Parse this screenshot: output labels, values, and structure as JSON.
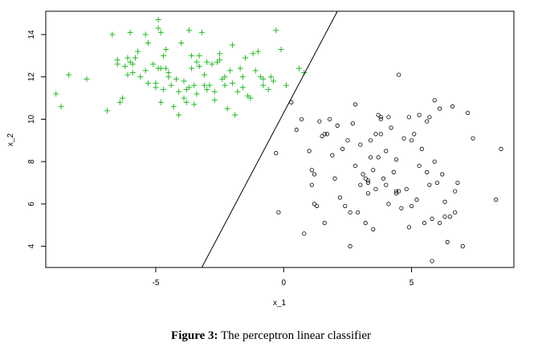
{
  "caption": {
    "label": "Figure 3:",
    "text": " The perceptron linear classifier"
  },
  "chart_data": {
    "type": "scatter",
    "title": "",
    "xlabel": "x_1",
    "ylabel": "x_2",
    "xlim": [
      -9.3,
      9.0
    ],
    "ylim": [
      3.0,
      15.1
    ],
    "xticks": [
      -5,
      0,
      5
    ],
    "yticks": [
      4,
      6,
      8,
      10,
      12,
      14
    ],
    "grid": false,
    "colors": {
      "class_plus": "#22bb22",
      "class_circle": "#000000",
      "line": "#000000"
    },
    "decision_line": {
      "x": [
        -3.2,
        2.1
      ],
      "y": [
        3.0,
        15.1
      ]
    },
    "series": [
      {
        "marker": "plus",
        "points": [
          [
            -8.9,
            11.2
          ],
          [
            -8.7,
            10.6
          ],
          [
            -8.4,
            12.1
          ],
          [
            -7.7,
            11.9
          ],
          [
            -6.9,
            10.4
          ],
          [
            -6.7,
            14.0
          ],
          [
            -6.5,
            12.6
          ],
          [
            -6.5,
            12.8
          ],
          [
            -6.4,
            10.8
          ],
          [
            -6.3,
            11.0
          ],
          [
            -6.2,
            12.5
          ],
          [
            -6.1,
            12.1
          ],
          [
            -6.1,
            12.9
          ],
          [
            -6.0,
            12.7
          ],
          [
            -6.0,
            14.1
          ],
          [
            -5.9,
            12.2
          ],
          [
            -5.9,
            12.6
          ],
          [
            -5.8,
            12.9
          ],
          [
            -5.7,
            13.2
          ],
          [
            -5.6,
            12.0
          ],
          [
            -5.4,
            12.3
          ],
          [
            -5.4,
            14.0
          ],
          [
            -5.3,
            11.7
          ],
          [
            -5.3,
            13.6
          ],
          [
            -5.1,
            12.6
          ],
          [
            -5.0,
            11.5
          ],
          [
            -5.0,
            11.7
          ],
          [
            -4.9,
            14.3
          ],
          [
            -4.9,
            14.7
          ],
          [
            -4.9,
            12.4
          ],
          [
            -4.8,
            12.4
          ],
          [
            -4.8,
            10.8
          ],
          [
            -4.8,
            14.1
          ],
          [
            -4.7,
            11.4
          ],
          [
            -4.7,
            13.0
          ],
          [
            -4.6,
            12.4
          ],
          [
            -4.6,
            13.3
          ],
          [
            -4.5,
            12.0
          ],
          [
            -4.5,
            12.2
          ],
          [
            -4.4,
            11.6
          ],
          [
            -4.3,
            10.6
          ],
          [
            -4.2,
            11.9
          ],
          [
            -4.1,
            11.3
          ],
          [
            -4.0,
            13.6
          ],
          [
            -3.9,
            11.0
          ],
          [
            -3.9,
            11.8
          ],
          [
            -3.8,
            10.8
          ],
          [
            -3.8,
            11.4
          ],
          [
            -3.7,
            14.2
          ],
          [
            -3.7,
            11.5
          ],
          [
            -3.6,
            12.4
          ],
          [
            -3.6,
            13.0
          ],
          [
            -3.5,
            10.7
          ],
          [
            -3.5,
            11.6
          ],
          [
            -3.4,
            11.2
          ],
          [
            -3.4,
            12.7
          ],
          [
            -3.3,
            13.0
          ],
          [
            -3.3,
            12.5
          ],
          [
            -3.2,
            14.1
          ],
          [
            -3.1,
            11.6
          ],
          [
            -3.1,
            12.1
          ],
          [
            -3.0,
            12.7
          ],
          [
            -3.0,
            11.4
          ],
          [
            -2.9,
            11.6
          ],
          [
            -2.8,
            12.6
          ],
          [
            -2.7,
            11.3
          ],
          [
            -2.7,
            10.9
          ],
          [
            -2.6,
            12.7
          ],
          [
            -2.5,
            12.8
          ],
          [
            -2.5,
            13.1
          ],
          [
            -2.4,
            11.9
          ],
          [
            -2.3,
            12.0
          ],
          [
            -2.3,
            11.6
          ],
          [
            -2.2,
            10.5
          ],
          [
            -2.1,
            12.3
          ],
          [
            -2.0,
            13.5
          ],
          [
            -2.0,
            11.7
          ],
          [
            -1.9,
            10.2
          ],
          [
            -1.8,
            11.3
          ],
          [
            -1.7,
            12.4
          ],
          [
            -1.6,
            12.0
          ],
          [
            -1.6,
            11.5
          ],
          [
            -1.5,
            12.9
          ],
          [
            -1.4,
            11.1
          ],
          [
            -1.3,
            11.0
          ],
          [
            -1.2,
            13.1
          ],
          [
            -1.1,
            12.3
          ],
          [
            -1.0,
            13.2
          ],
          [
            -0.9,
            12.0
          ],
          [
            -0.8,
            11.6
          ],
          [
            -0.8,
            11.9
          ],
          [
            -0.6,
            11.4
          ],
          [
            -0.5,
            12.0
          ],
          [
            -0.4,
            11.8
          ],
          [
            -0.3,
            14.2
          ],
          [
            -0.1,
            13.3
          ],
          [
            0.1,
            11.6
          ],
          [
            0.6,
            12.4
          ],
          [
            0.8,
            12.2
          ],
          [
            -4.1,
            10.2
          ]
        ]
      },
      {
        "marker": "circle",
        "points": [
          [
            -0.3,
            8.4
          ],
          [
            -0.2,
            5.6
          ],
          [
            0.3,
            10.8
          ],
          [
            0.5,
            9.5
          ],
          [
            0.7,
            10.0
          ],
          [
            0.8,
            4.6
          ],
          [
            1.0,
            8.5
          ],
          [
            1.1,
            6.9
          ],
          [
            1.1,
            7.6
          ],
          [
            1.2,
            7.4
          ],
          [
            1.2,
            6.0
          ],
          [
            1.3,
            5.9
          ],
          [
            1.4,
            9.9
          ],
          [
            1.5,
            9.2
          ],
          [
            1.6,
            9.3
          ],
          [
            1.6,
            5.1
          ],
          [
            1.7,
            9.3
          ],
          [
            1.8,
            10.0
          ],
          [
            1.9,
            8.3
          ],
          [
            2.0,
            7.2
          ],
          [
            2.1,
            9.7
          ],
          [
            2.3,
            8.6
          ],
          [
            2.4,
            5.9
          ],
          [
            2.5,
            9.0
          ],
          [
            2.6,
            4.0
          ],
          [
            2.6,
            5.6
          ],
          [
            2.7,
            9.8
          ],
          [
            2.8,
            10.7
          ],
          [
            2.8,
            7.8
          ],
          [
            2.9,
            5.6
          ],
          [
            3.0,
            6.9
          ],
          [
            3.0,
            8.8
          ],
          [
            3.1,
            7.4
          ],
          [
            3.2,
            5.1
          ],
          [
            3.3,
            7.1
          ],
          [
            3.3,
            7.0
          ],
          [
            3.3,
            6.5
          ],
          [
            3.4,
            9.0
          ],
          [
            3.4,
            8.2
          ],
          [
            3.5,
            4.8
          ],
          [
            3.5,
            7.6
          ],
          [
            3.6,
            9.3
          ],
          [
            3.6,
            6.7
          ],
          [
            3.7,
            10.2
          ],
          [
            3.7,
            8.2
          ],
          [
            3.8,
            10.1
          ],
          [
            3.8,
            10.0
          ],
          [
            3.8,
            9.3
          ],
          [
            3.9,
            7.2
          ],
          [
            4.0,
            8.5
          ],
          [
            4.0,
            6.9
          ],
          [
            4.1,
            6.0
          ],
          [
            4.1,
            10.1
          ],
          [
            4.2,
            9.6
          ],
          [
            4.3,
            7.5
          ],
          [
            4.4,
            6.5
          ],
          [
            4.4,
            8.1
          ],
          [
            4.5,
            12.1
          ],
          [
            4.5,
            6.6
          ],
          [
            4.6,
            5.8
          ],
          [
            4.7,
            9.1
          ],
          [
            4.8,
            6.7
          ],
          [
            4.9,
            4.9
          ],
          [
            4.9,
            10.1
          ],
          [
            5.0,
            9.0
          ],
          [
            5.0,
            5.9
          ],
          [
            5.1,
            9.3
          ],
          [
            5.2,
            6.2
          ],
          [
            5.3,
            10.2
          ],
          [
            5.3,
            7.8
          ],
          [
            5.4,
            8.6
          ],
          [
            5.5,
            5.1
          ],
          [
            5.6,
            7.5
          ],
          [
            5.6,
            9.9
          ],
          [
            5.7,
            6.9
          ],
          [
            5.7,
            10.1
          ],
          [
            5.8,
            3.3
          ],
          [
            5.8,
            5.3
          ],
          [
            5.9,
            10.9
          ],
          [
            6.0,
            7.0
          ],
          [
            6.1,
            5.1
          ],
          [
            6.1,
            10.5
          ],
          [
            6.2,
            7.4
          ],
          [
            6.3,
            5.4
          ],
          [
            6.4,
            4.2
          ],
          [
            6.5,
            5.4
          ],
          [
            6.6,
            10.6
          ],
          [
            6.7,
            5.6
          ],
          [
            6.7,
            6.6
          ],
          [
            6.8,
            7.0
          ],
          [
            7.0,
            4.0
          ],
          [
            7.2,
            10.3
          ],
          [
            7.4,
            9.1
          ],
          [
            8.3,
            6.2
          ],
          [
            8.5,
            8.6
          ],
          [
            5.9,
            8.0
          ],
          [
            6.3,
            6.1
          ],
          [
            4.4,
            6.6
          ],
          [
            3.2,
            7.2
          ],
          [
            2.2,
            6.3
          ]
        ]
      }
    ]
  }
}
